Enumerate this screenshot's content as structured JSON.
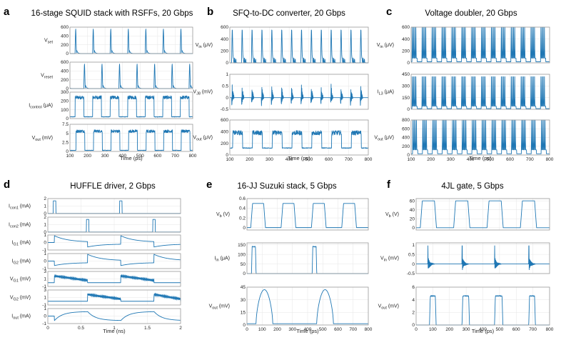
{
  "colors": {
    "trace": "#1f77b4",
    "frame": "#9a9a9a",
    "grid": "#e6e6e6"
  },
  "chart_data": [
    {
      "letter": "a",
      "type": "line",
      "title": "16-stage SQUID stack with RSFFs, 20 Gbps",
      "xlabel": "Time (ps)",
      "xlim": [
        100,
        800
      ],
      "xticks": [
        100,
        200,
        300,
        400,
        500,
        600,
        700,
        800
      ],
      "subplots": [
        {
          "ylabel": "V_set",
          "ylabel_base": "V",
          "ylabel_sub": "set",
          "ylabel_unit": "",
          "ylim": [
            0,
            600
          ],
          "yticks": [
            0,
            200,
            400,
            600
          ],
          "pattern": "pulses",
          "params": {
            "t0": 130,
            "period": 100,
            "amp": 560,
            "base": 80
          }
        },
        {
          "ylabel": "V_reset",
          "ylabel_base": "V",
          "ylabel_sub": "reset",
          "ylabel_unit": "",
          "ylim": [
            0,
            600
          ],
          "yticks": [
            0,
            200,
            400,
            600
          ],
          "pattern": "pulses",
          "params": {
            "t0": 180,
            "period": 100,
            "amp": 560,
            "base": 80
          }
        },
        {
          "ylabel": "I_control (μA)",
          "ylabel_base": "I",
          "ylabel_sub": "control",
          "ylabel_unit": "(μA)",
          "ylim": [
            0,
            300
          ],
          "yticks": [
            0,
            100,
            200,
            300
          ],
          "pattern": "square_noisy",
          "params": {
            "t0": 130,
            "period": 100,
            "duty": 0.5,
            "low": 20,
            "high": 240,
            "noise": 40
          }
        },
        {
          "ylabel": "V_out (mV)",
          "ylabel_base": "V",
          "ylabel_sub": "out",
          "ylabel_unit": "(mV)",
          "ylim": [
            0,
            7.5
          ],
          "yticks": [
            0,
            2.5,
            5,
            7.5
          ],
          "ytick_labels": [
            "0",
            "2.5",
            "5",
            "7.5"
          ],
          "pattern": "square_noisy",
          "params": {
            "t0": 135,
            "period": 100,
            "duty": 0.5,
            "low": 0.3,
            "high": 5.6,
            "noise": 0.8
          }
        }
      ]
    },
    {
      "letter": "b",
      "type": "line",
      "title": "SFQ-to-DC converter, 20 Gbps",
      "xlabel": "Time (ps)",
      "xlim": [
        100,
        800
      ],
      "xticks": [
        100,
        200,
        300,
        400,
        500,
        600,
        700,
        800
      ],
      "subplots": [
        {
          "ylabel": "V_in (μV)",
          "ylabel_base": "V",
          "ylabel_sub": "in",
          "ylabel_unit": "(μV)",
          "ylim": [
            0,
            600
          ],
          "yticks": [
            0,
            200,
            400,
            600
          ],
          "pattern": "pulses",
          "params": {
            "t0": 110,
            "period": 50,
            "amp": 540,
            "base": 60,
            "dense": true
          }
        },
        {
          "ylabel": "V_J8 (mV)",
          "ylabel_base": "V",
          "ylabel_sub": "J8",
          "ylabel_unit": "(mV)",
          "ylim": [
            -0.5,
            1
          ],
          "yticks": [
            -0.5,
            0,
            0.5,
            1
          ],
          "ytick_labels": [
            "-0.5",
            "0",
            "0.5",
            "1"
          ],
          "pattern": "bursts",
          "params": {
            "t0": 110,
            "period": 50,
            "amp": 0.9,
            "neg": 0.35,
            "base": 0
          }
        },
        {
          "ylabel": "V_out (μV)",
          "ylabel_base": "V",
          "ylabel_sub": "out",
          "ylabel_unit": "(μV)",
          "ylim": [
            0,
            600
          ],
          "yticks": [
            0,
            200,
            400,
            600
          ],
          "pattern": "square_noisy",
          "params": {
            "t0": 115,
            "period": 100,
            "duty": 0.5,
            "low": 120,
            "high": 380,
            "noise": 80
          }
        }
      ]
    },
    {
      "letter": "c",
      "type": "line",
      "title": "Voltage doubler, 20 Gbps",
      "xlabel": "Time (ps)",
      "xlim": [
        100,
        800
      ],
      "xticks": [
        100,
        200,
        300,
        400,
        500,
        600,
        700,
        800
      ],
      "subplots": [
        {
          "ylabel": "V_in (μV)",
          "ylabel_base": "V",
          "ylabel_sub": "in",
          "ylabel_unit": "(μV)",
          "ylim": [
            0,
            600
          ],
          "yticks": [
            0,
            200,
            400,
            600
          ],
          "pattern": "pulse_groups",
          "params": {
            "t0": 105,
            "period": 50,
            "count": 4,
            "spacing": 6,
            "amp": 560,
            "base": 60
          }
        },
        {
          "ylabel": "I_L3 (μA)",
          "ylabel_base": "I",
          "ylabel_sub": "L3",
          "ylabel_unit": "(μA)",
          "ylim": [
            0,
            450
          ],
          "yticks": [
            0,
            150,
            300,
            450
          ],
          "pattern": "pulse_groups",
          "params": {
            "t0": 105,
            "period": 50,
            "count": 4,
            "spacing": 6,
            "amp": 380,
            "base": 30
          }
        },
        {
          "ylabel": "V_out (μV)",
          "ylabel_base": "V",
          "ylabel_sub": "out",
          "ylabel_unit": "(μV)",
          "ylim": [
            0,
            800
          ],
          "yticks": [
            0,
            200,
            400,
            600,
            800
          ],
          "pattern": "pulse_groups",
          "params": {
            "t0": 108,
            "period": 50,
            "count": 4,
            "spacing": 6,
            "amp": 720,
            "base": 90
          }
        }
      ]
    },
    {
      "letter": "d",
      "type": "line",
      "title": "HUFFLE driver, 2 Gbps",
      "xlabel": "Time (ns)",
      "xlim": [
        0,
        2
      ],
      "xticks": [
        0,
        0.5,
        1,
        1.5,
        2
      ],
      "xtick_labels": [
        "0",
        "0.5",
        "1",
        "1.5",
        "2"
      ],
      "subplots": [
        {
          "ylabel": "I_con1 (mA)",
          "ylabel_base": "I",
          "ylabel_sub": "con1",
          "ylabel_unit": "(mA)",
          "ylim": [
            0,
            2
          ],
          "yticks": [
            0,
            1,
            2
          ],
          "pattern": "narrow_pulses",
          "params": {
            "times": [
              0.1,
              1.1
            ],
            "width": 0.04,
            "amp": 1.7,
            "base": 0.02
          }
        },
        {
          "ylabel": "I_con2 (mA)",
          "ylabel_base": "I",
          "ylabel_sub": "con2",
          "ylabel_unit": "(mA)",
          "ylim": [
            0,
            2
          ],
          "yticks": [
            0,
            1,
            2
          ],
          "pattern": "narrow_pulses",
          "params": {
            "times": [
              0.6,
              1.6
            ],
            "width": 0.04,
            "amp": 1.7,
            "base": 0.02
          }
        },
        {
          "ylabel": "I_G1 (mA)",
          "ylabel_base": "I",
          "ylabel_sub": "G1",
          "ylabel_unit": "(mA)",
          "ylim": [
            -1,
            1
          ],
          "yticks": [
            -1,
            0,
            1
          ],
          "pattern": "exp_steps",
          "params": {
            "events": [
              [
                0.1,
                0.9,
                0.2
              ],
              [
                0.6,
                -0.6,
                0.2
              ],
              [
                1.1,
                0.9,
                0.2
              ],
              [
                1.6,
                -0.6,
                0.2
              ]
            ],
            "base": 0
          }
        },
        {
          "ylabel": "I_G2 (mA)",
          "ylabel_base": "I",
          "ylabel_sub": "G2",
          "ylabel_unit": "(mA)",
          "ylim": [
            -1,
            1
          ],
          "yticks": [
            -1,
            0,
            1
          ],
          "pattern": "exp_steps",
          "params": {
            "events": [
              [
                0.1,
                -0.6,
                0.2
              ],
              [
                0.6,
                0.9,
                0.2
              ],
              [
                1.1,
                -0.6,
                0.2
              ],
              [
                1.6,
                0.9,
                0.2
              ]
            ],
            "base": 0
          }
        },
        {
          "ylabel": "V_G1 (mV)",
          "ylabel_base": "V",
          "ylabel_sub": "G1",
          "ylabel_unit": "(mV)",
          "ylim": [
            -1,
            3
          ],
          "yticks": [
            -1,
            1,
            3
          ],
          "pattern": "osc_decay",
          "params": {
            "windows": [
              [
                0.1,
                0.6
              ],
              [
                1.1,
                1.6
              ]
            ],
            "start": 1.8,
            "end": 0.6,
            "amp": 0.45
          }
        },
        {
          "ylabel": "V_G2 (mV)",
          "ylabel_base": "V",
          "ylabel_sub": "G2",
          "ylabel_unit": "(mV)",
          "ylim": [
            -1,
            3
          ],
          "yticks": [
            -1,
            1,
            3
          ],
          "pattern": "osc_decay",
          "params": {
            "windows": [
              [
                0.6,
                1.1
              ],
              [
                1.6,
                2.0
              ]
            ],
            "start": 1.8,
            "end": 0.6,
            "amp": 0.45
          }
        },
        {
          "ylabel": "I_out (mA)",
          "ylabel_base": "I",
          "ylabel_sub": "out",
          "ylabel_unit": "(mA)",
          "ylim": [
            -1,
            1
          ],
          "yticks": [
            -1,
            0,
            1
          ],
          "pattern": "smooth_square",
          "params": {
            "edges": [
              0.1,
              0.6,
              1.1,
              1.6
            ],
            "high": 0.6,
            "low": -0.6,
            "tau": 0.12
          }
        }
      ]
    },
    {
      "letter": "e",
      "type": "line",
      "title": "16-JJ Suzuki stack, 5 Gbps",
      "xlabel": "Time (ps)",
      "xlim": [
        0,
        800
      ],
      "xticks": [
        0,
        100,
        200,
        300,
        400,
        500,
        600,
        700,
        800
      ],
      "subplots": [
        {
          "ylabel": "V_b (V)",
          "ylabel_base": "V",
          "ylabel_sub": "b",
          "ylabel_unit": "(V)",
          "ylim": [
            -0.05,
            0.6
          ],
          "yticks": [
            0,
            0.2,
            0.4,
            0.6
          ],
          "ytick_labels": [
            "0",
            "0.2",
            "0.4",
            "0.6"
          ],
          "pattern": "trapezoid",
          "params": {
            "t0": 25,
            "period": 200,
            "high_len": 85,
            "ramp": 12,
            "low": 0,
            "high": 0.5
          }
        },
        {
          "ylabel": "I_in (μA)",
          "ylabel_base": "I",
          "ylabel_sub": "in",
          "ylabel_unit": "(μA)",
          "ylim": [
            0,
            160
          ],
          "yticks": [
            0,
            50,
            100,
            150
          ],
          "pattern": "rect",
          "params": {
            "windows": [
              [
                30,
                60
              ],
              [
                430,
                460
              ]
            ],
            "high": 140,
            "low": 0,
            "ramp": 4
          }
        },
        {
          "ylabel": "V_out (mV)",
          "ylabel_base": "V",
          "ylabel_sub": "out",
          "ylabel_unit": "(mV)",
          "ylim": [
            0,
            45
          ],
          "yticks": [
            0,
            15,
            30,
            45
          ],
          "pattern": "bumps",
          "params": {
            "windows": [
              [
                60,
                170
              ],
              [
                460,
                570
              ]
            ],
            "high": 42,
            "low": 1.5
          }
        }
      ]
    },
    {
      "letter": "f",
      "type": "line",
      "title": "4JL gate, 5 Gbps",
      "xlabel": "Time (ps)",
      "xlim": [
        0,
        800
      ],
      "xticks": [
        0,
        100,
        200,
        300,
        400,
        500,
        600,
        700,
        800
      ],
      "subplots": [
        {
          "ylabel": "V_b (V)",
          "ylabel_base": "V",
          "ylabel_sub": "b",
          "ylabel_unit": "(V)",
          "ylim": [
            -5,
            65
          ],
          "yticks": [
            0,
            20,
            40,
            60
          ],
          "pattern": "trapezoid",
          "params": {
            "t0": 25,
            "period": 200,
            "high_len": 85,
            "ramp": 12,
            "low": 0,
            "high": 60
          }
        },
        {
          "ylabel": "V_in (mV)",
          "ylabel_base": "V",
          "ylabel_sub": "in",
          "ylabel_unit": "(mV)",
          "ylim": [
            -0.5,
            1.1
          ],
          "yticks": [
            -0.5,
            0,
            0.5,
            1
          ],
          "ytick_labels": [
            "-0.5",
            "0",
            "0.5",
            "1"
          ],
          "pattern": "ringing",
          "params": {
            "times": [
              70,
              275,
              470,
              675
            ],
            "amp": 0.95,
            "ring": 0.35
          }
        },
        {
          "ylabel": "V_out (mV)",
          "ylabel_base": "V",
          "ylabel_sub": "out",
          "ylabel_unit": "(mV)",
          "ylim": [
            0,
            6
          ],
          "yticks": [
            0,
            2,
            4,
            6
          ],
          "pattern": "rect",
          "params": {
            "windows": [
              [
                80,
                120
              ],
              [
                275,
                320
              ],
              [
                470,
                520
              ],
              [
                675,
                715
              ]
            ],
            "high": 4.6,
            "low": 0,
            "ramp": 5
          }
        }
      ]
    }
  ]
}
